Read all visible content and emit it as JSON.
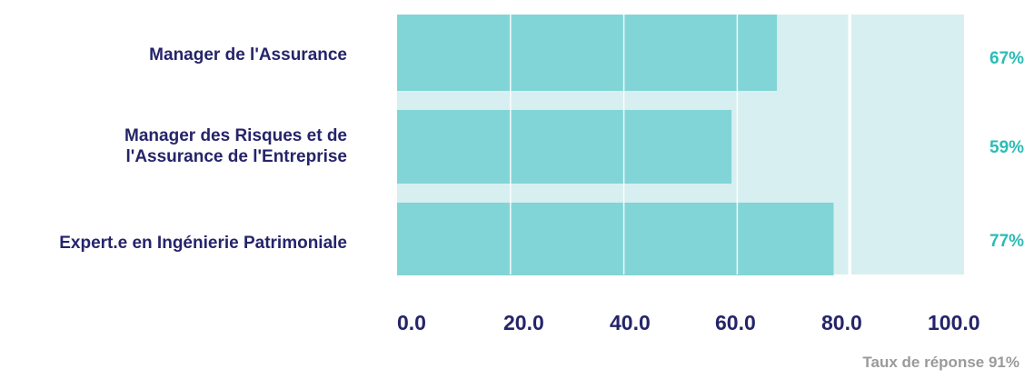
{
  "chart_data": {
    "type": "bar",
    "orientation": "horizontal",
    "categories": [
      "Manager de l'Assurance",
      "Manager des Risques et de\nl'Assurance de l'Entreprise",
      "Expert.e en Ingénierie Patrimoniale"
    ],
    "values": [
      67,
      59,
      77
    ],
    "value_labels": [
      "67%",
      "59%",
      "77%"
    ],
    "x_ticks": [
      "0.0",
      "20.0",
      "40.0",
      "60.0",
      "80.0",
      "100.0"
    ],
    "xlim": [
      0,
      100
    ],
    "legend": "none",
    "grid": true,
    "title": "",
    "xlabel": "",
    "ylabel": ""
  },
  "footnote": "Taux de réponse 91%",
  "colors": {
    "bar": "#82d5d6",
    "background_band": "#d7eff0",
    "label": "#25246a",
    "value": "#2bbcb6",
    "note": "#9a9a9a"
  }
}
